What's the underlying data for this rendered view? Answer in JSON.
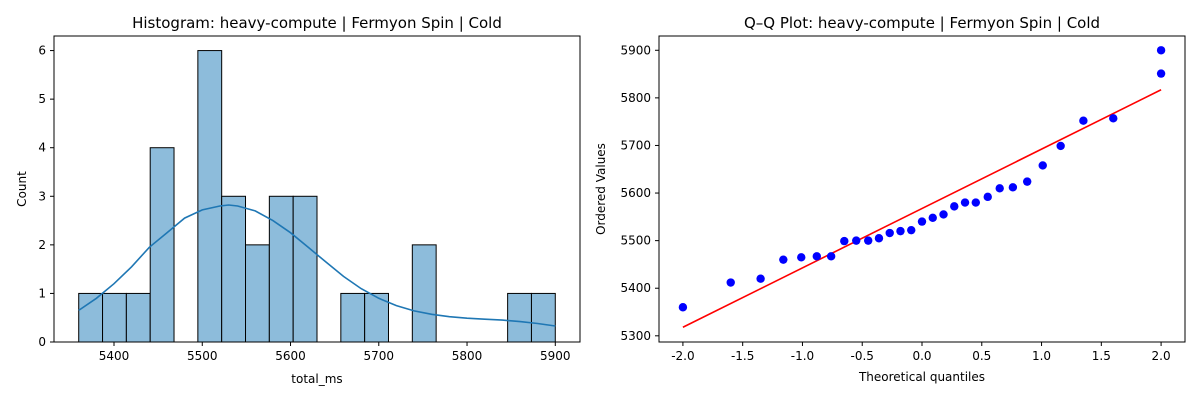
{
  "chart_data": [
    {
      "type": "bar",
      "title": "Histogram: heavy-compute | Fermyon Spin | Cold",
      "xlabel": "total_ms",
      "ylabel": "Count",
      "xlim": [
        5332,
        5928
      ],
      "ylim": [
        0,
        6.3
      ],
      "xticks": [
        5400,
        5500,
        5600,
        5700,
        5800,
        5900
      ],
      "yticks": [
        0,
        1,
        2,
        3,
        4,
        5,
        6
      ],
      "bin_edges": [
        5360,
        5387,
        5414,
        5441,
        5468,
        5495,
        5522,
        5549,
        5576,
        5603,
        5630,
        5657,
        5684,
        5711,
        5738,
        5765,
        5792,
        5819,
        5846,
        5873,
        5900
      ],
      "counts": [
        1,
        1,
        1,
        4,
        0,
        6,
        3,
        2,
        3,
        3,
        0,
        1,
        1,
        0,
        2,
        0,
        0,
        0,
        1,
        1
      ],
      "kde": {
        "x": [
          5360,
          5380,
          5400,
          5420,
          5440,
          5460,
          5480,
          5500,
          5520,
          5530,
          5540,
          5560,
          5580,
          5600,
          5620,
          5640,
          5660,
          5680,
          5700,
          5720,
          5740,
          5760,
          5780,
          5800,
          5820,
          5840,
          5860,
          5880,
          5900
        ],
        "y": [
          0.65,
          0.9,
          1.2,
          1.55,
          1.95,
          2.25,
          2.55,
          2.72,
          2.8,
          2.82,
          2.8,
          2.7,
          2.5,
          2.25,
          1.95,
          1.65,
          1.35,
          1.1,
          0.9,
          0.75,
          0.64,
          0.57,
          0.52,
          0.49,
          0.47,
          0.45,
          0.42,
          0.38,
          0.33
        ]
      },
      "colors": {
        "bar_fill": "#8dbcdb",
        "bar_edge": "#000000",
        "kde": "#1f77b4"
      },
      "grid": false
    },
    {
      "type": "scatter",
      "title": "Q–Q Plot: heavy-compute | Fermyon Spin | Cold",
      "xlabel": "Theoretical quantiles",
      "ylabel": "Ordered Values",
      "xlim": [
        -2.2,
        2.2
      ],
      "ylim": [
        5287,
        5930
      ],
      "xticks": [
        -2.0,
        -1.5,
        -1.0,
        -0.5,
        0.0,
        0.5,
        1.0,
        1.5,
        2.0
      ],
      "yticks": [
        5300,
        5400,
        5500,
        5600,
        5700,
        5800,
        5900
      ],
      "points": {
        "x": [
          -2.0,
          -1.6,
          -1.35,
          -1.16,
          -1.01,
          -0.88,
          -0.76,
          -0.65,
          -0.55,
          -0.45,
          -0.36,
          -0.27,
          -0.18,
          -0.09,
          0.0,
          0.09,
          0.18,
          0.27,
          0.36,
          0.45,
          0.55,
          0.65,
          0.76,
          0.88,
          1.01,
          1.16,
          1.35,
          1.6,
          2.0
        ],
        "y": [
          5360,
          5412,
          5420,
          5460,
          5465,
          5467,
          5467,
          5499,
          5500,
          5500,
          5505,
          5516,
          5520,
          5522,
          5540,
          5548,
          5555,
          5572,
          5580,
          5580,
          5592,
          5610,
          5612,
          5624,
          5658,
          5699,
          5752,
          5757,
          5851
        ]
      },
      "extra_point": {
        "x": 2.0,
        "y": 5900
      },
      "fit_line": {
        "x": [
          -2.0,
          2.0
        ],
        "y": [
          5318,
          5817
        ]
      },
      "colors": {
        "points": "#0000ff",
        "line": "#ff0000"
      },
      "grid": false
    }
  ]
}
